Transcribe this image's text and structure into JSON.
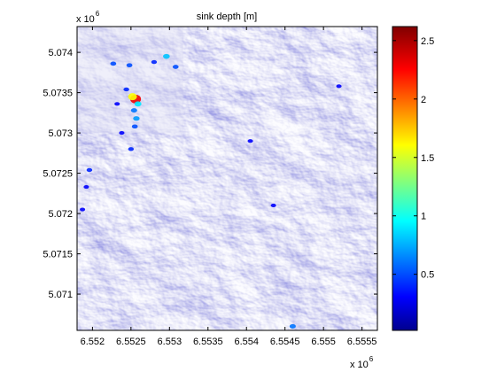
{
  "chart_data": {
    "type": "heatmap",
    "title": "sink depth [m]",
    "xlabel": "",
    "ylabel": "",
    "x_exponent_label": "x 10",
    "x_exponent_power": "6",
    "y_exponent_label": "x 10",
    "y_exponent_power": "6",
    "xlim": [
      6.5518,
      6.5557
    ],
    "ylim": [
      5.07055,
      5.07432
    ],
    "x_ticks": [
      6.552,
      6.5525,
      6.553,
      6.5535,
      6.554,
      6.5545,
      6.555,
      6.5555
    ],
    "x_tick_labels": [
      "6.552",
      "6.5525",
      "6.553",
      "6.5535",
      "6.554",
      "6.5545",
      "6.555",
      "6.5555"
    ],
    "y_ticks": [
      5.071,
      5.0715,
      5.072,
      5.0725,
      5.073,
      5.0735,
      5.074
    ],
    "y_tick_labels": [
      "5.071",
      "5.0715",
      "5.072",
      "5.0725",
      "5.073",
      "5.0735",
      "5.074"
    ],
    "grid": false,
    "background": "hillshade",
    "colorbar": {
      "colormap": "jet",
      "range": [
        0.02,
        2.62
      ],
      "ticks": [
        0.5,
        1,
        1.5,
        2,
        2.5
      ],
      "tick_labels": [
        "0.5",
        "1",
        "1.5",
        "2",
        "2.5"
      ]
    },
    "sinks": [
      {
        "x": 6.55256,
        "y": 5.07342,
        "depth": 2.3
      },
      {
        "x": 6.55252,
        "y": 5.07345,
        "depth": 1.6
      },
      {
        "x": 6.55259,
        "y": 5.07336,
        "depth": 0.9
      },
      {
        "x": 6.55254,
        "y": 5.07328,
        "depth": 0.6
      },
      {
        "x": 6.55257,
        "y": 5.07318,
        "depth": 0.7
      },
      {
        "x": 6.55255,
        "y": 5.07308,
        "depth": 0.5
      },
      {
        "x": 6.55227,
        "y": 5.07386,
        "depth": 0.5
      },
      {
        "x": 6.55248,
        "y": 5.07384,
        "depth": 0.5
      },
      {
        "x": 6.5528,
        "y": 5.07388,
        "depth": 0.4
      },
      {
        "x": 6.55296,
        "y": 5.07395,
        "depth": 0.8
      },
      {
        "x": 6.55308,
        "y": 5.07382,
        "depth": 0.5
      },
      {
        "x": 6.55244,
        "y": 5.07354,
        "depth": 0.4
      },
      {
        "x": 6.55232,
        "y": 5.07336,
        "depth": 0.3
      },
      {
        "x": 6.55238,
        "y": 5.073,
        "depth": 0.3
      },
      {
        "x": 6.55196,
        "y": 5.07254,
        "depth": 0.4
      },
      {
        "x": 6.55192,
        "y": 5.07233,
        "depth": 0.3
      },
      {
        "x": 6.55187,
        "y": 5.07205,
        "depth": 0.3
      },
      {
        "x": 6.5552,
        "y": 5.07358,
        "depth": 0.3
      },
      {
        "x": 6.55405,
        "y": 5.0729,
        "depth": 0.3
      },
      {
        "x": 6.5546,
        "y": 5.0706,
        "depth": 0.6
      },
      {
        "x": 6.55435,
        "y": 5.0721,
        "depth": 0.3
      },
      {
        "x": 6.5525,
        "y": 5.0728,
        "depth": 0.4
      }
    ]
  }
}
